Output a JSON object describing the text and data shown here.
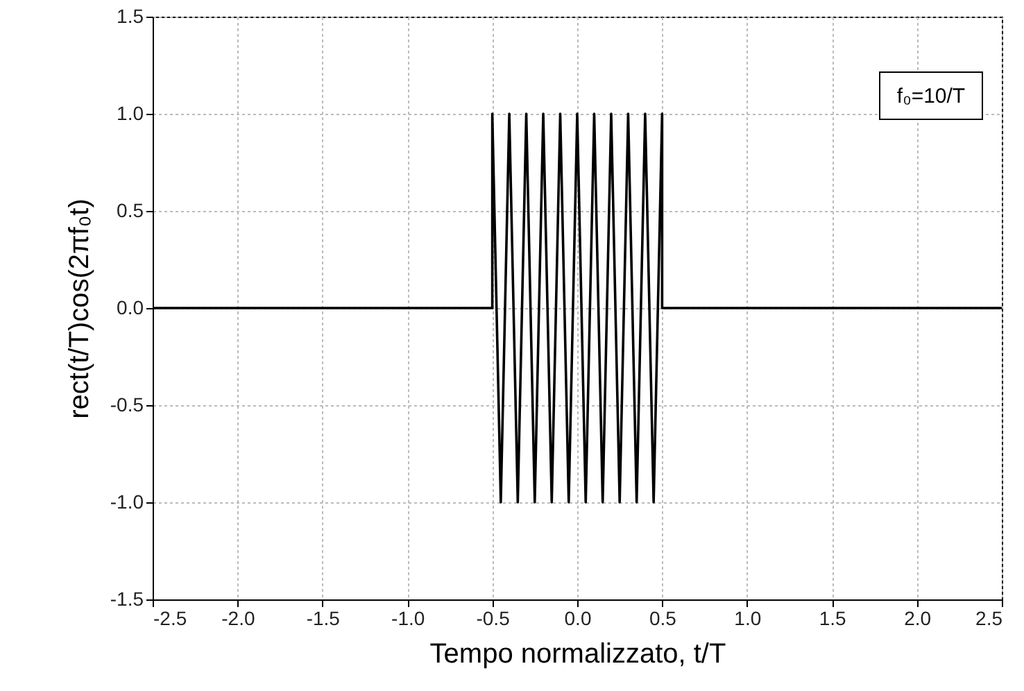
{
  "chart_data": {
    "type": "line",
    "xlabel": "Tempo normalizzato, t/T",
    "ylabel": "rect(t/T)cos(2πf₀t)",
    "annotations": [
      "f₀=10/T"
    ],
    "x": [
      -2.5,
      -0.5,
      -0.5,
      -0.45,
      -0.4,
      -0.35,
      -0.3,
      -0.25,
      -0.2,
      -0.15,
      -0.1,
      -0.05,
      0,
      0.05,
      0.1,
      0.15,
      0.2,
      0.25,
      0.3,
      0.35,
      0.4,
      0.45,
      0.5,
      0.5,
      2.5
    ],
    "series": [
      {
        "color": "#000000",
        "values": [
          0,
          0,
          1,
          -1,
          1,
          -1,
          1,
          -1,
          1,
          -1,
          1,
          -1,
          1,
          -1,
          1,
          -1,
          1,
          -1,
          1,
          -1,
          1,
          -1,
          1,
          0,
          0
        ]
      }
    ],
    "xlim": [
      -2.5,
      2.5
    ],
    "ylim": [
      -1.5,
      1.5
    ],
    "xticks": [
      -2.5,
      {
        "value": -2,
        "label": "-2.0"
      },
      -1.5,
      {
        "value": -1,
        "label": "-1.0"
      },
      -0.5,
      {
        "value": 0,
        "label": "0.0"
      },
      0.5,
      {
        "value": 1,
        "label": "1.0"
      },
      1.5,
      {
        "value": 2,
        "label": "2.0"
      },
      2.5
    ],
    "yticks": [
      -1.5,
      {
        "value": -1,
        "label": "-1.0"
      },
      -0.5,
      {
        "value": 0,
        "label": "0.0"
      },
      0.5,
      {
        "value": 1,
        "label": "1.0"
      },
      1.5
    ],
    "grid": true,
    "marker": "none",
    "line_style": "solid"
  }
}
